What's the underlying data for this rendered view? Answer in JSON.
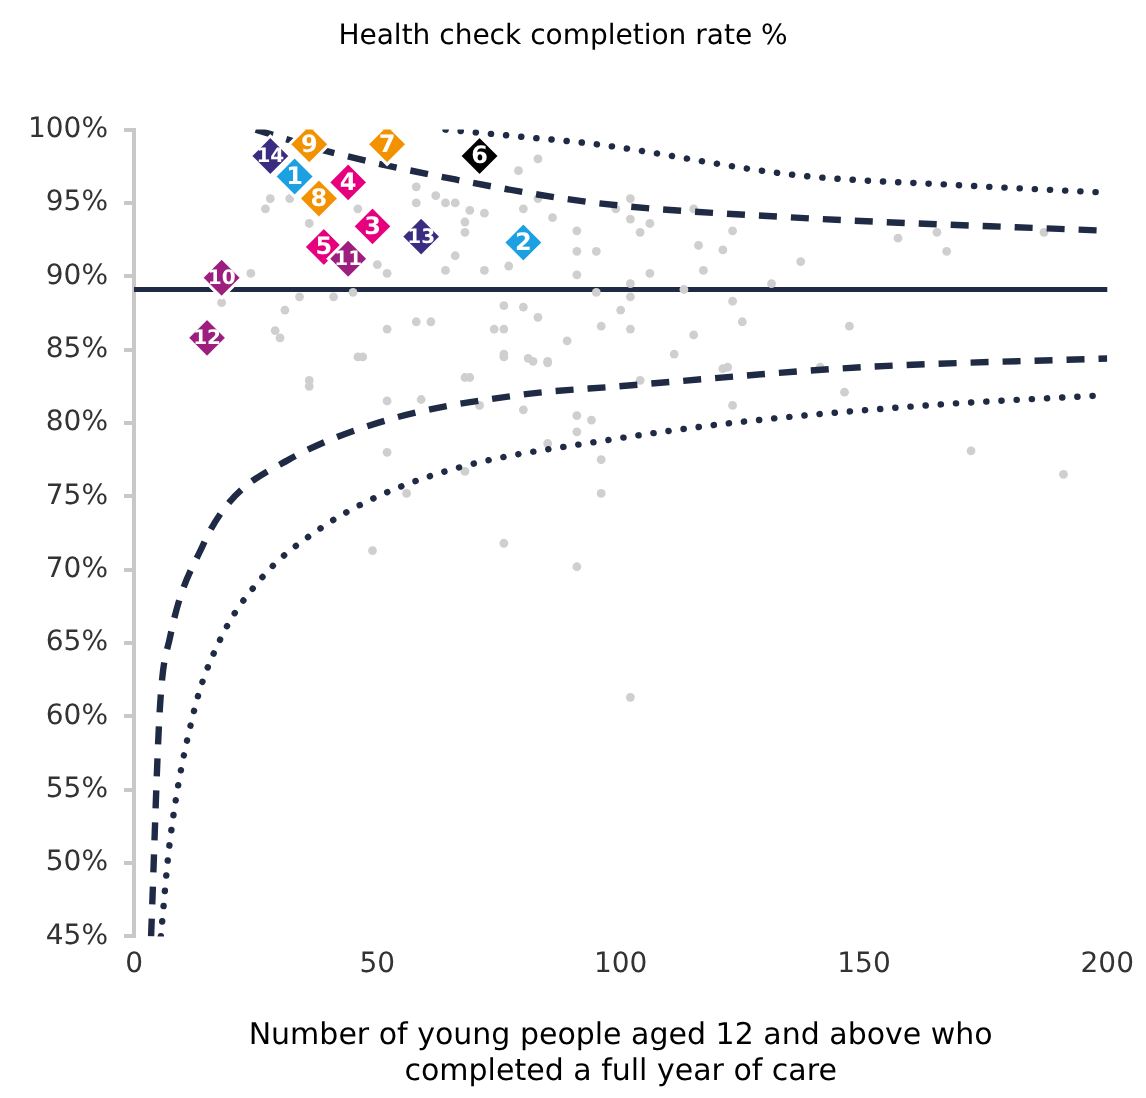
{
  "chart_data": {
    "type": "scatter",
    "title": "Health check completion rate %",
    "xlabel": "Number of young people aged 12 and above who completed a full year of care",
    "xlim": [
      0,
      200
    ],
    "xticks": [
      0,
      50,
      100,
      150,
      200
    ],
    "ylim": [
      45,
      100
    ],
    "yticks": [
      {
        "value": 45,
        "label": "45%"
      },
      {
        "value": 50,
        "label": "50%"
      },
      {
        "value": 55,
        "label": "55%"
      },
      {
        "value": 60,
        "label": "60%"
      },
      {
        "value": 65,
        "label": "65%"
      },
      {
        "value": 70,
        "label": "70%"
      },
      {
        "value": 75,
        "label": "75%"
      },
      {
        "value": 80,
        "label": "80%"
      },
      {
        "value": 85,
        "label": "85%"
      },
      {
        "value": 90,
        "label": "90%"
      },
      {
        "value": 95,
        "label": "95%"
      },
      {
        "value": 100,
        "label": "100%"
      }
    ],
    "grid": false,
    "legend": false,
    "ref_lines": [
      {
        "axis": "y",
        "value": 89.1,
        "color": "#1f2a44"
      }
    ],
    "series": [
      {
        "color": "#cfcfcf",
        "marker": "circle",
        "x": [
          83,
          79,
          66,
          69,
          72,
          68,
          68,
          83,
          80,
          86,
          91,
          99,
          102,
          102,
          104,
          106,
          115,
          116,
          123,
          121,
          66,
          64,
          72,
          77,
          91,
          95,
          91,
          106,
          102,
          117,
          131,
          137,
          157,
          165,
          167,
          187,
          95,
          76,
          80,
          83,
          102,
          100,
          113,
          123,
          125,
          147,
          102,
          96,
          74,
          76,
          89,
          115,
          76,
          81,
          85,
          68,
          121,
          28,
          27,
          32,
          36,
          46,
          50,
          52,
          58,
          62,
          58,
          64,
          24,
          18,
          34,
          31,
          41,
          45,
          29,
          30,
          52,
          58,
          61,
          46,
          36,
          36,
          47,
          52,
          59,
          69,
          71,
          76,
          82,
          85,
          80,
          52,
          49,
          76,
          91,
          91,
          94,
          85,
          96,
          96,
          91,
          68,
          56,
          111,
          122,
          141,
          123,
          146,
          104,
          172,
          191,
          102
        ],
        "values": [
          98.0,
          97.2,
          95.0,
          94.5,
          94.3,
          93.7,
          93.0,
          95.3,
          94.6,
          94.0,
          93.1,
          94.6,
          95.3,
          93.9,
          93.0,
          93.6,
          94.6,
          92.1,
          93.1,
          91.8,
          91.4,
          90.4,
          90.4,
          90.7,
          91.7,
          91.7,
          90.1,
          90.2,
          89.5,
          90.4,
          89.5,
          91.0,
          92.6,
          93.0,
          91.7,
          93.0,
          88.9,
          88.0,
          87.9,
          87.2,
          88.6,
          87.7,
          89.1,
          88.3,
          86.9,
          86.6,
          86.4,
          86.6,
          86.4,
          86.4,
          85.6,
          86.0,
          84.7,
          84.4,
          84.2,
          83.1,
          83.7,
          95.3,
          94.6,
          95.3,
          93.6,
          94.6,
          90.8,
          90.2,
          96.1,
          95.5,
          95.0,
          95.0,
          90.2,
          88.2,
          88.6,
          87.7,
          88.6,
          88.9,
          86.3,
          85.8,
          86.4,
          86.9,
          86.9,
          84.5,
          82.9,
          82.5,
          84.5,
          81.5,
          81.6,
          83.1,
          81.2,
          84.5,
          84.2,
          84.1,
          80.9,
          78.0,
          71.3,
          71.8,
          80.5,
          79.4,
          80.2,
          78.6,
          77.5,
          75.2,
          70.2,
          76.7,
          75.2,
          84.7,
          83.8,
          83.8,
          81.2,
          82.1,
          82.9,
          78.1,
          76.5,
          61.3
        ]
      },
      {
        "type": "line",
        "color": "#1f2a44",
        "line_style": "dashed",
        "x": [
          25,
          40,
          66,
          95,
          136,
          200
        ],
        "values": [
          100,
          98.5,
          96.6,
          95.0,
          94.0,
          93.1
        ]
      },
      {
        "type": "line",
        "color": "#1f2a44",
        "line_style": "dotted",
        "x": [
          64,
          80,
          95,
          136,
          170,
          200
        ],
        "values": [
          100,
          99.5,
          99.0,
          96.9,
          96.2,
          95.7
        ]
      },
      {
        "type": "line",
        "color": "#1f2a44",
        "line_style": "dashed",
        "x": [
          3.5,
          5.3,
          7.4,
          14.2,
          19.6,
          31.8,
          52,
          79,
          99.6,
          149.6,
          200
        ],
        "values": [
          45,
          60.5,
          65.4,
          71.7,
          74.6,
          77.5,
          80.2,
          81.9,
          82.5,
          83.8,
          84.4
        ]
      },
      {
        "type": "line",
        "color": "#1f2a44",
        "line_style": "dotted",
        "x": [
          5.5,
          7.3,
          12.2,
          17.5,
          26.4,
          37.8,
          50.8,
          68.3,
          96.7,
          122.8,
          163,
          200
        ],
        "values": [
          45,
          51.3,
          60.2,
          65.1,
          69.5,
          72.7,
          75.1,
          77.1,
          78.8,
          80.0,
          81.2,
          81.9
        ]
      },
      {
        "marker": "diamond",
        "x": [
          33,
          80,
          49,
          44,
          39,
          71,
          52,
          38,
          36,
          18,
          44,
          15,
          59,
          28
        ],
        "values": [
          96.8,
          92.3,
          93.4,
          96.4,
          92.0,
          98.2,
          99.0,
          95.3,
          99.0,
          89.9,
          91.2,
          85.8,
          92.7,
          98.2
        ],
        "colors": [
          "#1ba1e2",
          "#1ba1e2",
          "#e6007e",
          "#e6007e",
          "#e6007e",
          "#000000",
          "#f39200",
          "#f39200",
          "#f39200",
          "#9c1f7f",
          "#9c1f7f",
          "#9c1f7f",
          "#3a2c80",
          "#3a2c80"
        ]
      }
    ],
    "annotations": [
      {
        "text": "1",
        "x": 33,
        "y": 96.8
      },
      {
        "text": "2",
        "x": 80,
        "y": 92.3
      },
      {
        "text": "3",
        "x": 49,
        "y": 93.4
      },
      {
        "text": "4",
        "x": 44,
        "y": 96.4
      },
      {
        "text": "5",
        "x": 39,
        "y": 92.0
      },
      {
        "text": "6",
        "x": 71,
        "y": 98.2
      },
      {
        "text": "7",
        "x": 52,
        "y": 99.0
      },
      {
        "text": "8",
        "x": 38,
        "y": 95.3
      },
      {
        "text": "9",
        "x": 36,
        "y": 99.0
      },
      {
        "text": "10",
        "x": 18,
        "y": 89.9
      },
      {
        "text": "11",
        "x": 44,
        "y": 91.2
      },
      {
        "text": "12",
        "x": 15,
        "y": 85.8
      },
      {
        "text": "13",
        "x": 59,
        "y": 92.7
      },
      {
        "text": "14",
        "x": 28,
        "y": 98.2
      }
    ]
  }
}
